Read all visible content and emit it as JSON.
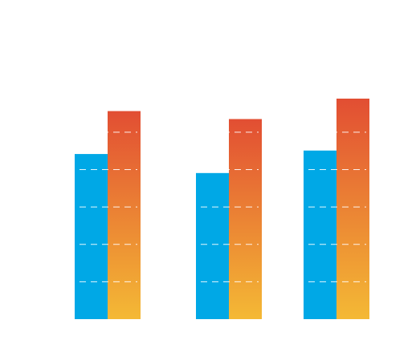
{
  "chart_data": {
    "type": "bar",
    "categories": [
      "",
      "",
      ""
    ],
    "series": [
      {
        "values": [
          47.7,
          42.2,
          48.7
        ]
      },
      {
        "values": [
          60.1,
          57.8,
          63.7
        ]
      }
    ],
    "ylim": [
      0,
      86.4
    ],
    "grid": true,
    "legend": "none",
    "title": "",
    "xlabel": "",
    "ylabel": ""
  },
  "colors": {
    "series_0": "#00a8e6",
    "series_1_top": "#e24e33",
    "series_1_bottom": "#f4b935",
    "gridline": "#ffffff",
    "background": "#ffffff"
  }
}
